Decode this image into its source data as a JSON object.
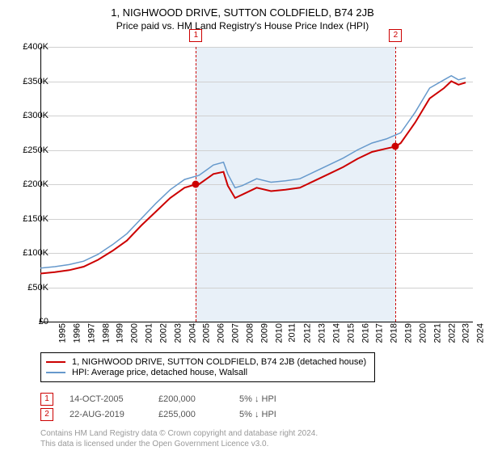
{
  "title": "1, NIGHWOOD DRIVE, SUTTON COLDFIELD, B74 2JB",
  "subtitle": "Price paid vs. HM Land Registry's House Price Index (HPI)",
  "chart": {
    "type": "line",
    "background_color": "#ffffff",
    "grid_color": "#d0d0d0",
    "shaded_color": "#e8f0f8",
    "ylim": [
      0,
      400000
    ],
    "ytick_step": 50000,
    "yticks": [
      "£0",
      "£50K",
      "£100K",
      "£150K",
      "£200K",
      "£250K",
      "£300K",
      "£350K",
      "£400K"
    ],
    "xlim": [
      1995,
      2025
    ],
    "xticks": [
      "1995",
      "1996",
      "1997",
      "1998",
      "1999",
      "2000",
      "2001",
      "2002",
      "2003",
      "2004",
      "2005",
      "2006",
      "2007",
      "2008",
      "2009",
      "2010",
      "2011",
      "2012",
      "2013",
      "2014",
      "2015",
      "2016",
      "2017",
      "2018",
      "2019",
      "2020",
      "2021",
      "2022",
      "2023",
      "2024",
      "2025"
    ],
    "shaded_range": [
      2005.79,
      2019.64
    ],
    "marker_line_color": "#cc0000",
    "marker_box_color": "#cc0000",
    "dot_color": "#cc0000",
    "series": [
      {
        "name": "1, NIGHWOOD DRIVE, SUTTON COLDFIELD, B74 2JB (detached house)",
        "color": "#cc0000",
        "width": 2,
        "data": [
          [
            1995,
            70000
          ],
          [
            1996,
            72000
          ],
          [
            1997,
            75000
          ],
          [
            1998,
            80000
          ],
          [
            1999,
            90000
          ],
          [
            2000,
            103000
          ],
          [
            2001,
            118000
          ],
          [
            2002,
            140000
          ],
          [
            2003,
            160000
          ],
          [
            2004,
            180000
          ],
          [
            2005,
            195000
          ],
          [
            2005.79,
            200000
          ],
          [
            2006,
            200000
          ],
          [
            2007,
            215000
          ],
          [
            2007.7,
            218000
          ],
          [
            2008,
            198000
          ],
          [
            2008.5,
            180000
          ],
          [
            2009,
            185000
          ],
          [
            2010,
            195000
          ],
          [
            2011,
            190000
          ],
          [
            2012,
            192000
          ],
          [
            2013,
            195000
          ],
          [
            2014,
            205000
          ],
          [
            2015,
            215000
          ],
          [
            2016,
            225000
          ],
          [
            2017,
            237000
          ],
          [
            2018,
            247000
          ],
          [
            2019,
            252000
          ],
          [
            2019.64,
            255000
          ],
          [
            2020,
            260000
          ],
          [
            2021,
            290000
          ],
          [
            2022,
            325000
          ],
          [
            2023,
            340000
          ],
          [
            2023.5,
            350000
          ],
          [
            2024,
            345000
          ],
          [
            2024.5,
            348000
          ]
        ]
      },
      {
        "name": "HPI: Average price, detached house, Walsall",
        "color": "#6699cc",
        "width": 1.5,
        "data": [
          [
            1995,
            78000
          ],
          [
            1996,
            80000
          ],
          [
            1997,
            83000
          ],
          [
            1998,
            88000
          ],
          [
            1999,
            98000
          ],
          [
            2000,
            112000
          ],
          [
            2001,
            128000
          ],
          [
            2002,
            150000
          ],
          [
            2003,
            172000
          ],
          [
            2004,
            192000
          ],
          [
            2005,
            207000
          ],
          [
            2006,
            213000
          ],
          [
            2007,
            228000
          ],
          [
            2007.7,
            232000
          ],
          [
            2008,
            215000
          ],
          [
            2008.5,
            195000
          ],
          [
            2009,
            198000
          ],
          [
            2010,
            208000
          ],
          [
            2011,
            203000
          ],
          [
            2012,
            205000
          ],
          [
            2013,
            208000
          ],
          [
            2014,
            218000
          ],
          [
            2015,
            228000
          ],
          [
            2016,
            238000
          ],
          [
            2017,
            250000
          ],
          [
            2018,
            260000
          ],
          [
            2019,
            266000
          ],
          [
            2020,
            275000
          ],
          [
            2021,
            305000
          ],
          [
            2022,
            340000
          ],
          [
            2023,
            352000
          ],
          [
            2023.5,
            358000
          ],
          [
            2024,
            352000
          ],
          [
            2024.5,
            355000
          ]
        ]
      }
    ],
    "markers": [
      {
        "n": "1",
        "x": 2005.79,
        "y": 200000
      },
      {
        "n": "2",
        "x": 2019.64,
        "y": 255000
      }
    ]
  },
  "legend": {
    "rows": [
      {
        "color": "#cc0000",
        "label": "1, NIGHWOOD DRIVE, SUTTON COLDFIELD, B74 2JB (detached house)"
      },
      {
        "color": "#6699cc",
        "label": "HPI: Average price, detached house, Walsall"
      }
    ]
  },
  "transactions": [
    {
      "n": "1",
      "date": "14-OCT-2005",
      "price": "£200,000",
      "diff": "5% ↓ HPI"
    },
    {
      "n": "2",
      "date": "22-AUG-2019",
      "price": "£255,000",
      "diff": "5% ↓ HPI"
    }
  ],
  "footer_line1": "Contains HM Land Registry data © Crown copyright and database right 2024.",
  "footer_line2": "This data is licensed under the Open Government Licence v3.0."
}
